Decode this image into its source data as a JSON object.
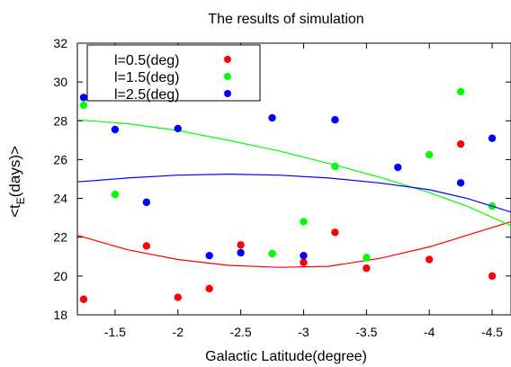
{
  "chart_data": {
    "type": "scatter",
    "title": "The results of simulation",
    "xlabel": "Galactic Latitude(degree)",
    "ylabel": {
      "base": "<t",
      "sub": "E",
      "rest": "(days)>"
    },
    "xlim": [
      -1.2,
      -4.65
    ],
    "ylim": [
      18,
      32
    ],
    "x_ticks": [
      -1.5,
      -2,
      -2.5,
      -3,
      -3.5,
      -4,
      -4.5
    ],
    "x_tick_labels": [
      "-1.5",
      "-2",
      "-2.5",
      "-3",
      "-3.5",
      "-4",
      "-4.5"
    ],
    "y_ticks": [
      18,
      20,
      22,
      24,
      26,
      28,
      30,
      32
    ],
    "y_tick_labels": [
      "18",
      "20",
      "22",
      "24",
      "26",
      "28",
      "30",
      "32"
    ],
    "grid": false,
    "legend_position": "top-left",
    "series": [
      {
        "name": "l=0.5(deg)",
        "color": "#ff0000",
        "points": [
          [
            -1.25,
            18.8
          ],
          [
            -1.75,
            21.55
          ],
          [
            -2.0,
            18.9
          ],
          [
            -2.25,
            19.35
          ],
          [
            -2.5,
            21.6
          ],
          [
            -2.75,
            21.15
          ],
          [
            -3.0,
            20.7
          ],
          [
            -3.25,
            22.25
          ],
          [
            -3.5,
            20.4
          ],
          [
            -4.0,
            20.85
          ],
          [
            -4.25,
            26.8
          ],
          [
            -4.5,
            20.0
          ]
        ],
        "fit": [
          [
            -1.2,
            22.1
          ],
          [
            -1.6,
            21.35
          ],
          [
            -2.0,
            20.85
          ],
          [
            -2.4,
            20.55
          ],
          [
            -2.8,
            20.45
          ],
          [
            -3.2,
            20.5
          ],
          [
            -3.6,
            20.9
          ],
          [
            -4.0,
            21.5
          ],
          [
            -4.3,
            22.1
          ],
          [
            -4.65,
            22.8
          ]
        ]
      },
      {
        "name": "l=1.5(deg)",
        "color": "#00ff00",
        "points": [
          [
            -1.25,
            28.8
          ],
          [
            -1.5,
            24.2
          ],
          [
            -2.75,
            21.15
          ],
          [
            -3.0,
            22.8
          ],
          [
            -3.25,
            25.65
          ],
          [
            -3.5,
            20.95
          ],
          [
            -4.0,
            26.25
          ],
          [
            -4.25,
            29.5
          ],
          [
            -4.5,
            23.6
          ]
        ],
        "fit": [
          [
            -1.2,
            28.05
          ],
          [
            -1.6,
            27.85
          ],
          [
            -2.0,
            27.5
          ],
          [
            -2.4,
            27.0
          ],
          [
            -2.8,
            26.45
          ],
          [
            -3.2,
            25.8
          ],
          [
            -3.6,
            25.1
          ],
          [
            -4.0,
            24.3
          ],
          [
            -4.3,
            23.6
          ],
          [
            -4.65,
            22.6
          ]
        ]
      },
      {
        "name": "l=2.5(deg)",
        "color": "#0000ff",
        "points": [
          [
            -1.25,
            29.2
          ],
          [
            -1.5,
            27.55
          ],
          [
            -1.75,
            23.8
          ],
          [
            -2.0,
            27.6
          ],
          [
            -2.25,
            21.05
          ],
          [
            -2.5,
            21.2
          ],
          [
            -2.75,
            28.15
          ],
          [
            -3.0,
            21.05
          ],
          [
            -3.25,
            28.05
          ],
          [
            -3.75,
            25.6
          ],
          [
            -4.25,
            24.8
          ],
          [
            -4.5,
            27.1
          ]
        ],
        "fit": [
          [
            -1.2,
            24.85
          ],
          [
            -1.6,
            25.05
          ],
          [
            -2.0,
            25.2
          ],
          [
            -2.4,
            25.25
          ],
          [
            -2.8,
            25.2
          ],
          [
            -3.2,
            25.05
          ],
          [
            -3.6,
            24.8
          ],
          [
            -4.0,
            24.45
          ],
          [
            -4.3,
            24.0
          ],
          [
            -4.65,
            23.3
          ]
        ]
      }
    ]
  }
}
